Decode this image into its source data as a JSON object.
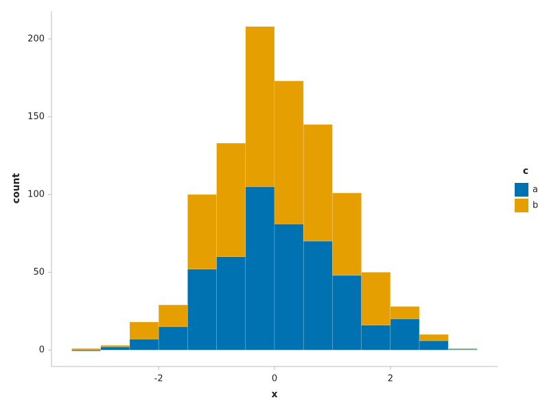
{
  "chart_data": {
    "type": "stacked-histogram",
    "x_label": "x",
    "y_label": "count",
    "legend_title": "c",
    "legend": "right",
    "bins": [
      -3.5,
      -3,
      -2.5,
      -2,
      -1.5,
      -1,
      -0.5,
      0,
      0.5,
      1,
      1.5,
      2,
      2.5,
      3,
      3.5
    ],
    "series": [
      {
        "name": "a",
        "color": "#0072b2",
        "values": [
          0,
          2,
          7,
          15,
          52,
          60,
          105,
          81,
          70,
          48,
          16,
          20,
          6,
          1
        ]
      },
      {
        "name": "b",
        "color": "#e69f00",
        "values": [
          1,
          1,
          11,
          14,
          48,
          73,
          103,
          92,
          75,
          53,
          34,
          8,
          4,
          0
        ]
      }
    ],
    "xlim": [
      -3.85,
      3.85
    ],
    "xticks": [
      -2,
      0,
      2
    ],
    "ylim": [
      -10.6,
      218
    ],
    "yticks": [
      0,
      50,
      100,
      150,
      200
    ]
  }
}
